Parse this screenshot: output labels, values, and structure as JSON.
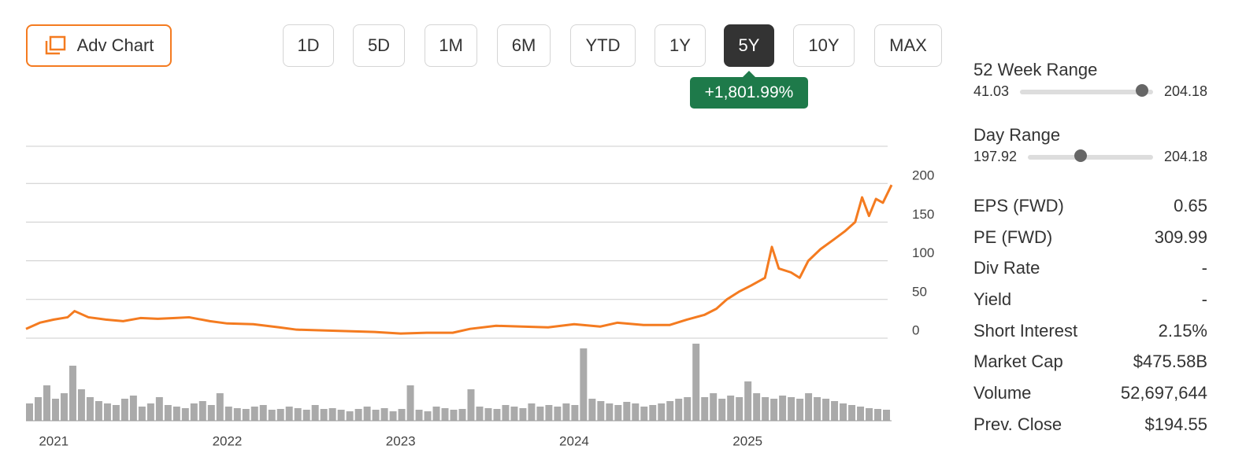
{
  "toolbar": {
    "adv_chart": "Adv Chart",
    "ranges": [
      "1D",
      "5D",
      "1M",
      "6M",
      "YTD",
      "1Y",
      "5Y",
      "10Y",
      "MAX"
    ],
    "active": "5Y",
    "change": "+1,801.99%"
  },
  "chart_data": {
    "type": "line",
    "color": "#f47b20",
    "x": [
      2020.84,
      2020.92,
      2021.0,
      2021.08,
      2021.12,
      2021.2,
      2021.3,
      2021.4,
      2021.5,
      2021.6,
      2021.7,
      2021.78,
      2021.9,
      2022.0,
      2022.15,
      2022.3,
      2022.4,
      2022.55,
      2022.7,
      2022.85,
      2023.0,
      2023.15,
      2023.3,
      2023.4,
      2023.55,
      2023.7,
      2023.85,
      2024.0,
      2024.15,
      2024.25,
      2024.4,
      2024.55,
      2024.65,
      2024.75,
      2024.82,
      2024.88,
      2024.95,
      2025.02,
      2025.1,
      2025.14,
      2025.18,
      2025.25,
      2025.3,
      2025.35,
      2025.42,
      2025.5,
      2025.56,
      2025.62,
      2025.66,
      2025.7,
      2025.74,
      2025.78,
      2025.83
    ],
    "values": [
      12,
      20,
      24,
      27,
      35,
      27,
      24,
      22,
      26,
      25,
      26,
      27,
      22,
      19,
      18,
      14,
      11,
      10,
      9,
      8,
      6,
      7,
      7,
      12,
      16,
      15,
      14,
      18,
      15,
      20,
      17,
      17,
      24,
      30,
      38,
      50,
      60,
      68,
      78,
      118,
      90,
      85,
      78,
      100,
      115,
      128,
      138,
      150,
      182,
      158,
      180,
      175,
      198
    ],
    "xlim": [
      2020.84,
      2025.83
    ],
    "xticks": [
      2021,
      2022,
      2023,
      2024,
      2025
    ],
    "ylim": [
      0,
      248
    ],
    "yticks": [
      0,
      50,
      100,
      150,
      200
    ],
    "grid": true,
    "volume": {
      "color": "#aaaaaa",
      "values": [
        22,
        30,
        45,
        28,
        35,
        70,
        40,
        30,
        25,
        22,
        20,
        28,
        32,
        18,
        22,
        30,
        20,
        18,
        16,
        22,
        25,
        20,
        35,
        18,
        16,
        15,
        18,
        20,
        14,
        15,
        18,
        16,
        14,
        20,
        15,
        16,
        14,
        12,
        15,
        18,
        14,
        16,
        12,
        15,
        45,
        14,
        12,
        18,
        16,
        14,
        15,
        40,
        18,
        16,
        15,
        20,
        18,
        16,
        22,
        18,
        20,
        18,
        22,
        20,
        92,
        28,
        25,
        22,
        20,
        24,
        22,
        18,
        20,
        22,
        25,
        28,
        30,
        98,
        30,
        35,
        28,
        32,
        30,
        50,
        35,
        30,
        28,
        32,
        30,
        28,
        35,
        30,
        28,
        25,
        22,
        20,
        18,
        16,
        15,
        14
      ]
    }
  },
  "stats": {
    "ranges": [
      {
        "label": "52 Week Range",
        "low": "41.03",
        "high": "204.18"
      },
      {
        "label": "Day Range",
        "low": "197.92",
        "high": "204.18"
      }
    ],
    "rows": [
      {
        "label": "EPS (FWD)",
        "value": "0.65"
      },
      {
        "label": "PE (FWD)",
        "value": "309.99"
      },
      {
        "label": "Div Rate",
        "value": "-"
      },
      {
        "label": "Yield",
        "value": "-"
      },
      {
        "label": "Short Interest",
        "value": "2.15%"
      },
      {
        "label": "Market Cap",
        "value": "$475.58B"
      },
      {
        "label": "Volume",
        "value": "52,697,644"
      },
      {
        "label": "Prev. Close",
        "value": "$194.55"
      }
    ]
  }
}
